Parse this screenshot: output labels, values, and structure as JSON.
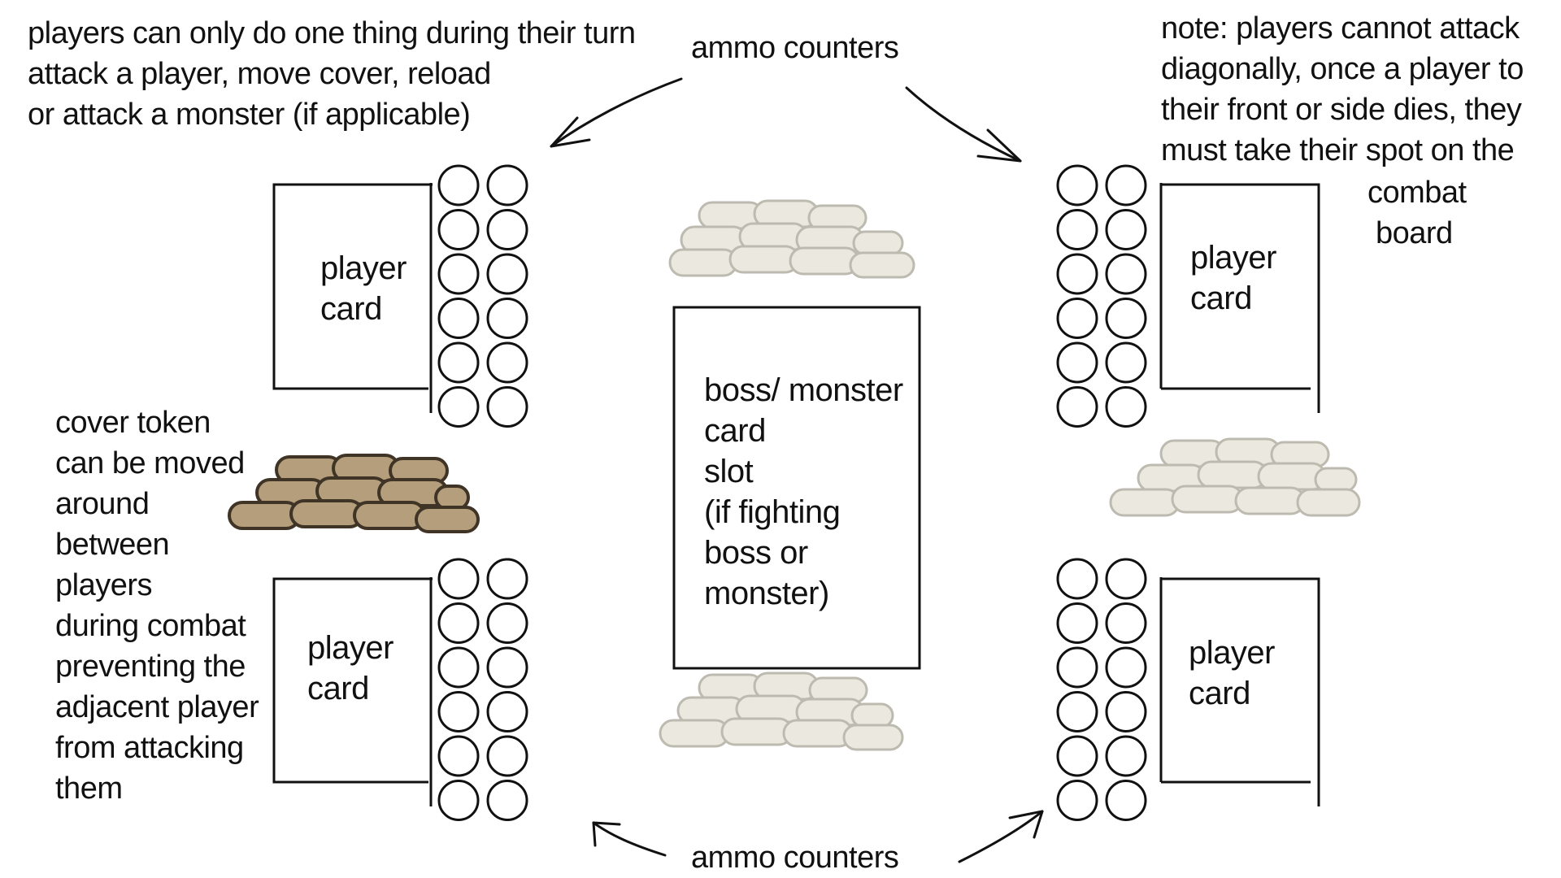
{
  "annotations": {
    "rules": {
      "lines": [
        "players can only do one thing during their turn",
        "attack a player, move cover, reload",
        "or attack a monster (if applicable)"
      ]
    },
    "ammo_top": "ammo counters",
    "ammo_bottom": "ammo counters",
    "note": {
      "lines": [
        "note: players cannot attack",
        "diagonally, once a player to",
        "their front or side dies, they",
        "must take their spot on the"
      ],
      "tail": [
        "combat",
        "board"
      ]
    },
    "cover": {
      "lines": [
        "cover token",
        "can be moved",
        "around",
        "between",
        "players",
        "during combat",
        "preventing the",
        "adjacent player",
        "from attacking",
        "them"
      ]
    }
  },
  "cards": {
    "top_left": [
      "player",
      "card"
    ],
    "top_right": [
      "player",
      "card"
    ],
    "bottom_left": [
      "player",
      "card"
    ],
    "bottom_right": [
      "player",
      "card"
    ],
    "boss": [
      "boss/ monster",
      "card",
      "slot",
      "(if fighting",
      "boss or",
      "monster)"
    ]
  },
  "colors": {
    "ink": "#111111",
    "cover_active": "#b49e7c",
    "cover_active_dark": "#5a4a33",
    "cover_inactive": "#ebe8df",
    "cover_inactive_line": "#bdbab0"
  },
  "icons": {
    "ammo": "ammo-counter-circle",
    "cover": "sandbag-cover-icon",
    "arrow": "hand-drawn-arrow-icon"
  }
}
